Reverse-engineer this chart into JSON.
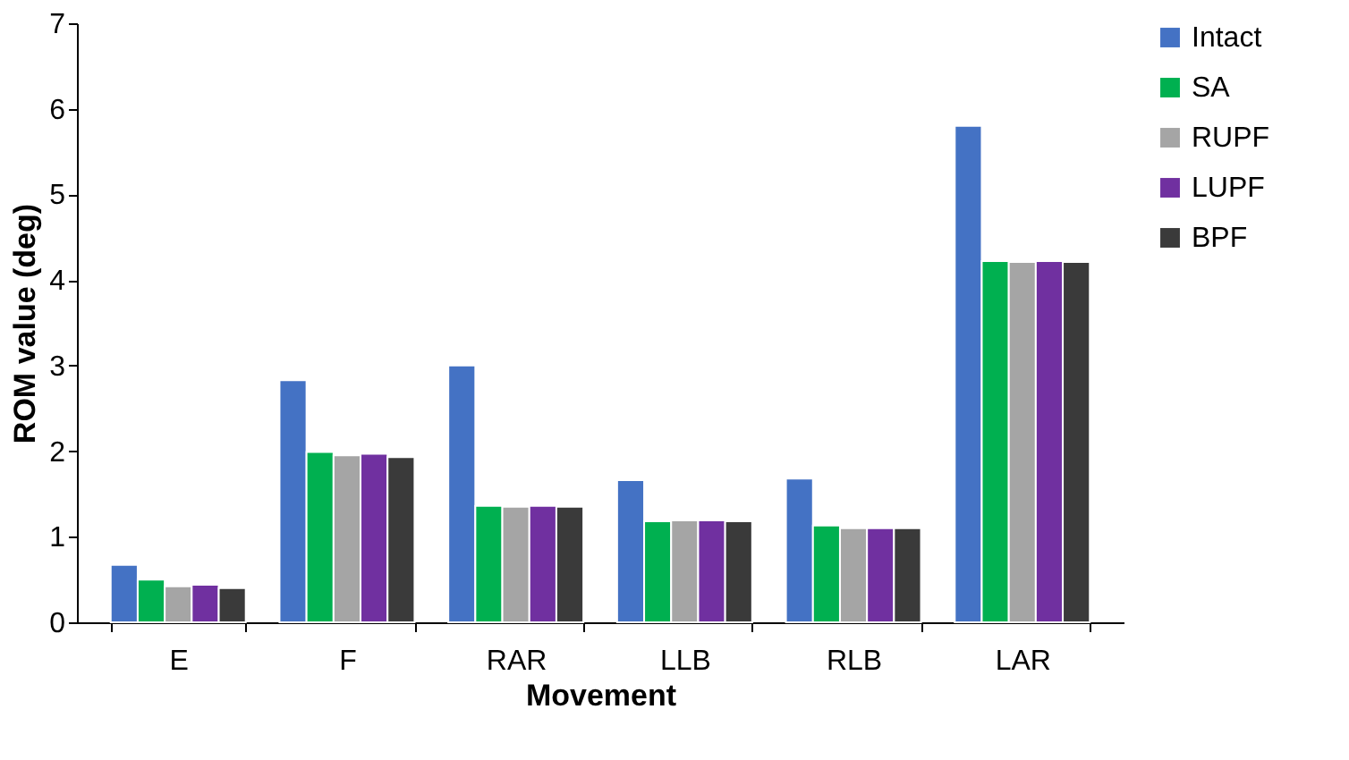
{
  "chart_data": {
    "type": "bar",
    "xlabel": "Movement",
    "ylabel": "ROM value (deg)",
    "categories": [
      "E",
      "F",
      "RAR",
      "LLB",
      "RLB",
      "LAR"
    ],
    "series": [
      {
        "name": "Intact",
        "color": "#4472c4",
        "values": [
          0.67,
          2.83,
          3.0,
          1.66,
          1.68,
          5.8
        ]
      },
      {
        "name": "SA",
        "color": "#00b050",
        "values": [
          0.5,
          1.99,
          1.36,
          1.18,
          1.13,
          4.22
        ]
      },
      {
        "name": "RUPF",
        "color": "#a5a5a5",
        "values": [
          0.42,
          1.95,
          1.35,
          1.19,
          1.1,
          4.21
        ]
      },
      {
        "name": "LUPF",
        "color": "#7030a0",
        "values": [
          0.44,
          1.97,
          1.36,
          1.19,
          1.1,
          4.22
        ]
      },
      {
        "name": "BPF",
        "color": "#3a3a3a",
        "values": [
          0.4,
          1.93,
          1.35,
          1.18,
          1.1,
          4.21
        ]
      }
    ],
    "ylim": [
      0,
      7
    ],
    "yticks": [
      0,
      1,
      2,
      3,
      4,
      5,
      6,
      7
    ],
    "grid": false,
    "legend": "right"
  }
}
